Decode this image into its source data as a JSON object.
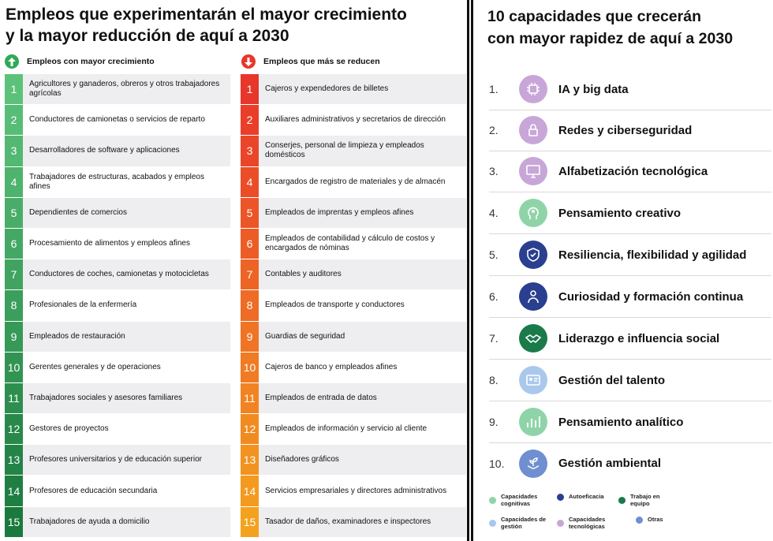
{
  "left": {
    "title_line1": "Empleos que experimentarán el mayor crecimiento",
    "title_line2": "y la mayor reducción de aquí a 2030",
    "growth_header": "Empleos con mayor crecimiento",
    "decline_header": "Empleos que más se reducen",
    "growth": [
      {
        "n": "1",
        "label": "Agricultores y ganaderos, obreros y otros trabajadores agrícolas"
      },
      {
        "n": "2",
        "label": "Conductores de camionetas o servicios de reparto"
      },
      {
        "n": "3",
        "label": "Desarrolladores de software y aplicaciones"
      },
      {
        "n": "4",
        "label": "Trabajadores de estructuras, acabados y empleos afines"
      },
      {
        "n": "5",
        "label": "Dependientes de comercios"
      },
      {
        "n": "6",
        "label": "Procesamiento de alimentos y empleos afines"
      },
      {
        "n": "7",
        "label": "Conductores de coches, camionetas y motocicletas"
      },
      {
        "n": "8",
        "label": "Profesionales de la enfermería"
      },
      {
        "n": "9",
        "label": "Empleados de restauración"
      },
      {
        "n": "10",
        "label": "Gerentes generales y de operaciones"
      },
      {
        "n": "11",
        "label": "Trabajadores sociales y asesores familiares"
      },
      {
        "n": "12",
        "label": "Gestores de proyectos"
      },
      {
        "n": "13",
        "label": "Profesores universitarios y de educación superior"
      },
      {
        "n": "14",
        "label": "Profesores de educación secundaria"
      },
      {
        "n": "15",
        "label": "Trabajadores de ayuda a domicilio"
      }
    ],
    "decline": [
      {
        "n": "1",
        "label": "Cajeros y expendedores de billetes"
      },
      {
        "n": "2",
        "label": "Auxiliares administrativos y secretarios de dirección"
      },
      {
        "n": "3",
        "label": "Conserjes, personal de limpieza y empleados domésticos"
      },
      {
        "n": "4",
        "label": "Encargados de registro de materiales y de almacén"
      },
      {
        "n": "5",
        "label": "Empleados de imprentas y empleos afines"
      },
      {
        "n": "6",
        "label": "Empleados de contabilidad y cálculo de costos y encargados de nóminas"
      },
      {
        "n": "7",
        "label": "Contables y auditores"
      },
      {
        "n": "8",
        "label": "Empleados de transporte y conductores"
      },
      {
        "n": "9",
        "label": "Guardias de seguridad"
      },
      {
        "n": "10",
        "label": "Cajeros de banco y empleados afines"
      },
      {
        "n": "11",
        "label": "Empleados de entrada de datos"
      },
      {
        "n": "12",
        "label": "Empleados de información y servicio al cliente"
      },
      {
        "n": "13",
        "label": "Diseñadores gráficos"
      },
      {
        "n": "14",
        "label": "Servicios empresariales y directores administrativos"
      },
      {
        "n": "15",
        "label": "Tasador de daños, examinadores e inspectores"
      }
    ],
    "colors": {
      "growth_light": "#5cc27a",
      "growth_dark": "#1a7a3e",
      "decline_red": "#e8362b",
      "decline_orange": "#f4a21e"
    }
  },
  "right": {
    "title_line1": "10 capacidades que crecerán",
    "title_line2": "con mayor rapidez de aquí a 2030",
    "skills": [
      {
        "n": "1.",
        "label": "IA y big data",
        "icon": "ai-chip-icon",
        "color": "#c8a6d8"
      },
      {
        "n": "2.",
        "label": "Redes y ciberseguridad",
        "icon": "lock-network-icon",
        "color": "#c8a6d8"
      },
      {
        "n": "3.",
        "label": "Alfabetización tecnológica",
        "icon": "monitor-icon",
        "color": "#c8a6d8"
      },
      {
        "n": "4.",
        "label": "Pensamiento creativo",
        "icon": "creative-head-icon",
        "color": "#8fd4a8"
      },
      {
        "n": "5.",
        "label": "Resiliencia, flexibilidad y agilidad",
        "icon": "shield-icon",
        "color": "#2a3f8f"
      },
      {
        "n": "6.",
        "label": "Curiosidad y formación continua",
        "icon": "learning-person-icon",
        "color": "#2a3f8f"
      },
      {
        "n": "7.",
        "label": "Liderazgo e influencia social",
        "icon": "handshake-icon",
        "color": "#1a7a4a"
      },
      {
        "n": "8.",
        "label": "Gestión del talento",
        "icon": "talent-card-icon",
        "color": "#a9c8ec"
      },
      {
        "n": "9.",
        "label": "Pensamiento analítico",
        "icon": "analytics-icon",
        "color": "#8fd4a8"
      },
      {
        "n": "10.",
        "label": "Gestión ambiental",
        "icon": "plant-hands-icon",
        "color": "#6f8fd0"
      }
    ],
    "legend": [
      {
        "label": "Capacidades cognitivas",
        "color": "#8fd4a8"
      },
      {
        "label": "Autoeficacia",
        "color": "#2a3f8f"
      },
      {
        "label": "Trabajo en equipo",
        "color": "#1a7a4a"
      },
      {
        "label": "Capacidades de gestión",
        "color": "#a9c8ec"
      },
      {
        "label": "Capacidades tecnológicas",
        "color": "#c8a6d8"
      },
      {
        "label": "Otras",
        "color": "#6f8fd0"
      }
    ]
  }
}
